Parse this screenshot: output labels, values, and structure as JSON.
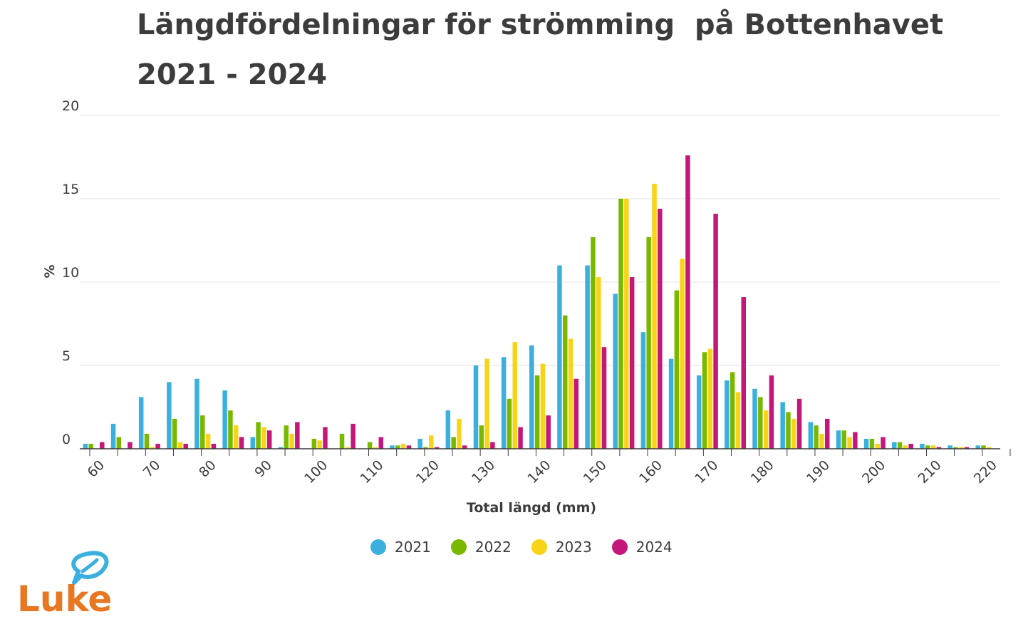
{
  "title": {
    "line1": "Längdfördelningar för strömming  på Bottenhavet",
    "line2": "2021 - 2024"
  },
  "logo": {
    "text": "Luke",
    "color": "#e87722",
    "leaf_color": "#3bb0de"
  },
  "chart_data": {
    "type": "bar",
    "title": "Längdfördelningar för strömming  på Bottenhavet 2021 - 2024",
    "xlabel": "Total längd (mm)",
    "ylabel": "%",
    "ylim": [
      0,
      20
    ],
    "yticks": [
      0,
      5,
      10,
      15,
      20
    ],
    "grid": true,
    "legend_position": "bottom",
    "x_tick_labels": [
      "60",
      "70",
      "80",
      "90",
      "100",
      "110",
      "120",
      "130",
      "140",
      "150",
      "160",
      "170",
      "180",
      "190",
      "200",
      "210",
      "220"
    ],
    "categories": [
      60,
      65,
      70,
      75,
      80,
      85,
      90,
      95,
      100,
      105,
      110,
      115,
      120,
      125,
      130,
      135,
      140,
      145,
      150,
      155,
      160,
      165,
      170,
      175,
      180,
      185,
      190,
      195,
      200,
      205,
      210,
      215,
      220
    ],
    "series": [
      {
        "name": "2021",
        "color": "#3bb0de",
        "values": [
          0.3,
          1.5,
          3.1,
          4.0,
          4.2,
          3.5,
          0.7,
          0.1,
          0.0,
          0.0,
          0.0,
          0.2,
          0.6,
          2.3,
          5.0,
          5.5,
          6.2,
          11.0,
          11.0,
          9.3,
          7.0,
          5.4,
          4.4,
          4.1,
          3.6,
          2.8,
          1.6,
          1.1,
          0.6,
          0.4,
          0.3,
          0.2,
          0.2
        ]
      },
      {
        "name": "2022",
        "color": "#7ab800",
        "values": [
          0.3,
          0.7,
          0.9,
          1.8,
          2.0,
          2.3,
          1.6,
          1.4,
          0.6,
          0.9,
          0.4,
          0.2,
          0.1,
          0.7,
          1.4,
          3.0,
          4.4,
          8.0,
          12.7,
          15.0,
          12.7,
          9.5,
          5.8,
          4.6,
          3.1,
          2.2,
          1.4,
          1.1,
          0.6,
          0.4,
          0.2,
          0.1,
          0.2
        ]
      },
      {
        "name": "2023",
        "color": "#f7d417",
        "values": [
          0.0,
          0.0,
          0.1,
          0.4,
          0.9,
          1.4,
          1.3,
          0.9,
          0.5,
          0.1,
          0.1,
          0.3,
          0.8,
          1.8,
          5.4,
          6.4,
          5.1,
          6.6,
          10.3,
          15.0,
          15.9,
          11.4,
          6.0,
          3.4,
          2.3,
          1.8,
          0.9,
          0.7,
          0.3,
          0.2,
          0.2,
          0.1,
          0.1
        ]
      },
      {
        "name": "2024",
        "color": "#c4177a",
        "values": [
          0.4,
          0.4,
          0.3,
          0.3,
          0.3,
          0.7,
          1.1,
          1.6,
          1.3,
          1.5,
          0.7,
          0.2,
          0.1,
          0.2,
          0.4,
          1.3,
          2.0,
          4.2,
          6.1,
          10.3,
          14.4,
          17.6,
          14.1,
          9.1,
          4.4,
          3.0,
          1.8,
          1.0,
          0.7,
          0.3,
          0.1,
          0.1,
          0.0
        ]
      }
    ]
  }
}
